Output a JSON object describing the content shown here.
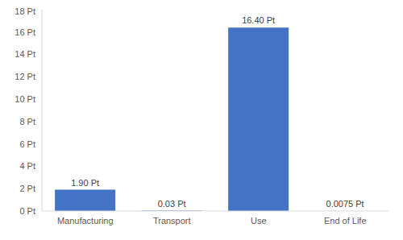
{
  "chart_data": {
    "type": "bar",
    "categories": [
      "Manufacturing",
      "Transport",
      "Use",
      "End of Life"
    ],
    "values": [
      1.9,
      0.03,
      16.4,
      0.0075
    ],
    "value_labels": [
      "1.90 Pt",
      "0.03 Pt",
      "16.40 Pt",
      "0.0075 Pt"
    ],
    "color": "#4472c4",
    "ylim": [
      0,
      18
    ],
    "yticks": [
      {
        "value": 0,
        "label": "0 Pt"
      },
      {
        "value": 2,
        "label": "2 Pt"
      },
      {
        "value": 4,
        "label": "4 Pt"
      },
      {
        "value": 6,
        "label": "6 Pt"
      },
      {
        "value": 8,
        "label": "8 Pt"
      },
      {
        "value": 10,
        "label": "10 Pt"
      },
      {
        "value": 12,
        "label": "12 Pt"
      },
      {
        "value": 14,
        "label": "14 Pt"
      },
      {
        "value": 16,
        "label": "16 Pt"
      },
      {
        "value": 18,
        "label": "18 Pt"
      }
    ],
    "grid": false,
    "data_labels": true
  }
}
